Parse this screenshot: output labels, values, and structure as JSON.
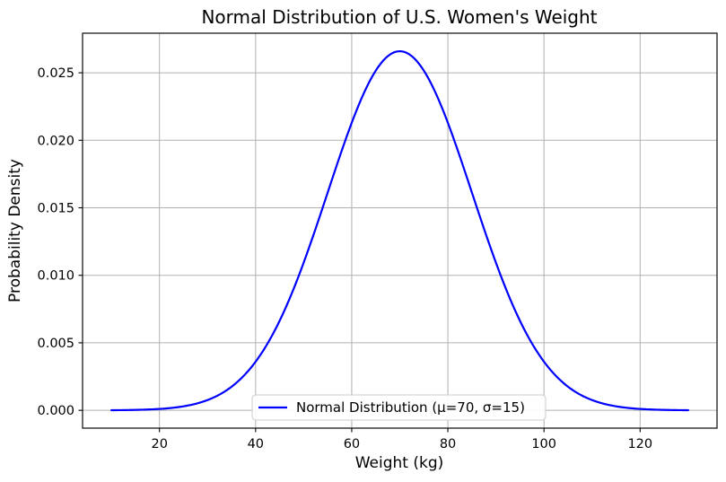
{
  "chart_data": {
    "type": "line",
    "title": "Normal Distribution of U.S. Women's Weight",
    "xlabel": "Weight (kg)",
    "ylabel": "Probability Density",
    "series": [
      {
        "name": "Normal Distribution (μ=70, σ=15)",
        "distribution": "normal",
        "mu": 70,
        "sigma": 15,
        "x_range": [
          10,
          130
        ],
        "color": "#0000ff",
        "line_width": 2.2,
        "peak_density": 0.0265962,
        "points": [
          [
            10,
            8.9e-06
          ],
          [
            15,
            3.2e-05
          ],
          [
            20,
            0.0001028
          ],
          [
            25,
            0.0002954
          ],
          [
            30,
            0.0007597
          ],
          [
            35,
            0.0017481
          ],
          [
            40,
            0.0035995
          ],
          [
            45,
            0.0066319
          ],
          [
            50,
            0.0109341
          ],
          [
            55,
            0.0161315
          ],
          [
            60,
            0.0212966
          ],
          [
            65,
            0.0251591
          ],
          [
            70,
            0.0265962
          ],
          [
            75,
            0.0251591
          ],
          [
            80,
            0.0212966
          ],
          [
            85,
            0.0161315
          ],
          [
            90,
            0.0109341
          ],
          [
            95,
            0.0066319
          ],
          [
            100,
            0.0035995
          ],
          [
            105,
            0.0017481
          ],
          [
            110,
            0.0007597
          ],
          [
            115,
            0.0002954
          ],
          [
            120,
            0.0001028
          ],
          [
            125,
            3.2e-05
          ],
          [
            130,
            8.9e-06
          ]
        ]
      }
    ],
    "x_ticks": [
      20,
      40,
      60,
      80,
      100,
      120
    ],
    "x_tick_labels": [
      "20",
      "40",
      "60",
      "80",
      "100",
      "120"
    ],
    "y_ticks": [
      0,
      0.005,
      0.01,
      0.015,
      0.02,
      0.025
    ],
    "y_tick_labels": [
      "0.000",
      "0.005",
      "0.010",
      "0.015",
      "0.020",
      "0.025"
    ],
    "xlim": [
      4,
      136
    ],
    "ylim": [
      -0.00132,
      0.02793
    ],
    "grid": true,
    "legend": {
      "labels": [
        "Normal Distribution (μ=70, σ=15)"
      ],
      "position": "lower center"
    },
    "colors": {
      "line": "#0000ff",
      "grid": "#b0b0b0",
      "spine": "#1a1a1a",
      "tick": "#000000",
      "text": "#000000",
      "legend_border": "#cccccc",
      "legend_background": "#ffffff",
      "background": "#ffffff"
    }
  }
}
